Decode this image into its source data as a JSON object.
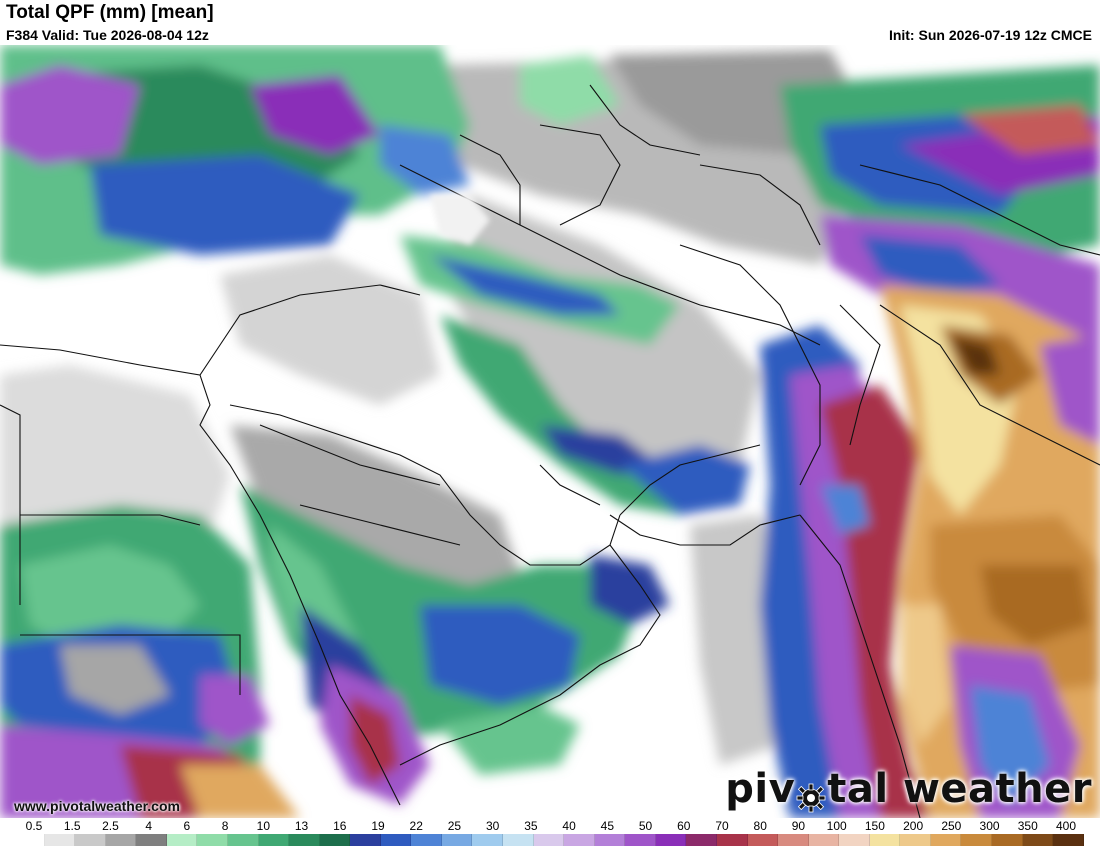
{
  "header": {
    "title": "Total QPF (mm) [mean]",
    "valid": "F384 Valid: Tue 2026-08-04 12z",
    "init": "Init: Sun 2026-07-19 12z CMCE"
  },
  "watermark": {
    "url": "www.pivotalweather.com",
    "brand_left": "piv",
    "brand_right": "tal weather"
  },
  "legend": {
    "labels": [
      "0.5",
      "1.5",
      "2.5",
      "4",
      "6",
      "8",
      "10",
      "13",
      "16",
      "19",
      "22",
      "25",
      "30",
      "35",
      "40",
      "45",
      "50",
      "60",
      "70",
      "80",
      "90",
      "100",
      "150",
      "200",
      "250",
      "300",
      "350",
      "400"
    ],
    "colors": [
      "#ffffff",
      "#e6e6e6",
      "#c9c9c9",
      "#a6a6a6",
      "#7f7f7f",
      "#b5edc6",
      "#8fdca8",
      "#66c48e",
      "#3fa873",
      "#2a8a5c",
      "#1d6e4c",
      "#2b3f9e",
      "#2f5bbf",
      "#4e83d6",
      "#77a9e3",
      "#9fcbee",
      "#c6e2f2",
      "#d9c9ec",
      "#c9a6e3",
      "#b37fd8",
      "#9f55c9",
      "#8a2fb8",
      "#8c2a6a",
      "#a8334a",
      "#c45a5a",
      "#d88a7f",
      "#e8b4a3",
      "#f2d4c2",
      "#f4e2a0",
      "#eec98a",
      "#e0a85e",
      "#c98a3c",
      "#a96a24",
      "#7e4a18",
      "#5a3010"
    ],
    "color_map": "Total QPF (mm)"
  }
}
